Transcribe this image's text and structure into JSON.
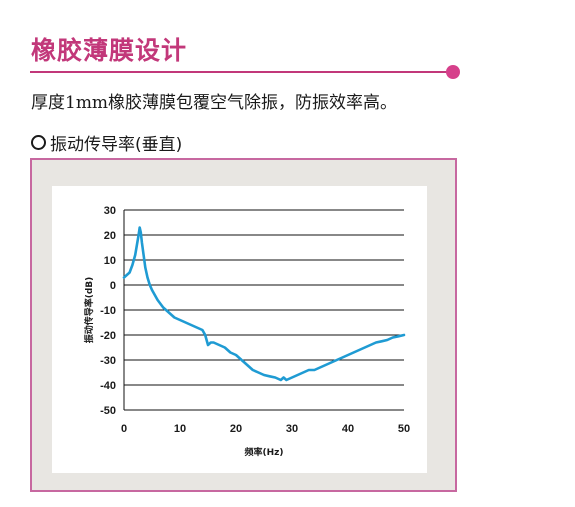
{
  "header": {
    "title": "橡胶薄膜设计",
    "description": "厚度1mm橡胶薄膜包覆空气除振，防振效率高。",
    "subtitle": "振动传导率(垂直)"
  },
  "colors": {
    "accent": "#c2387a",
    "frame": "#c768a0",
    "panel": "#e8e6e2",
    "line": "#1f9bd3"
  },
  "chart_data": {
    "type": "line",
    "title": "",
    "xlabel": "频率(Hz)",
    "ylabel": "振动传导率(dB)",
    "xlim": [
      0,
      50
    ],
    "ylim": [
      -50,
      30
    ],
    "x_ticks": [
      0,
      10,
      20,
      30,
      40,
      50
    ],
    "y_ticks": [
      30,
      20,
      10,
      0,
      -10,
      -20,
      -30,
      -40,
      -50
    ],
    "grid": "horizontal",
    "legend": "none",
    "series": [
      {
        "x": [
          0,
          0.5,
          1,
          1.5,
          2,
          2.3,
          2.6,
          2.8,
          3.0,
          3.2,
          3.5,
          3.8,
          4.2,
          4.6,
          5,
          5.5,
          6,
          7,
          8,
          9,
          10,
          11,
          12,
          13,
          14,
          14.5,
          15,
          15.5,
          16,
          17,
          18,
          19,
          20,
          21,
          22,
          23,
          24,
          25,
          26,
          27,
          28,
          28.5,
          29,
          30,
          31,
          32,
          33,
          34,
          35,
          36,
          37,
          38,
          39,
          40,
          41,
          42,
          43,
          44,
          45,
          46,
          47,
          48,
          49,
          50
        ],
        "y": [
          3,
          4,
          5,
          8,
          12,
          16,
          20,
          23,
          21,
          17,
          12,
          7,
          3,
          0,
          -2,
          -4,
          -6,
          -9,
          -11,
          -13,
          -14,
          -15,
          -16,
          -17,
          -18,
          -20,
          -24,
          -23,
          -23,
          -24,
          -25,
          -27,
          -28,
          -30,
          -32,
          -34,
          -35,
          -36,
          -36.5,
          -37,
          -38,
          -37,
          -38,
          -37,
          -36,
          -35,
          -34,
          -34,
          -33,
          -32,
          -31,
          -30,
          -29,
          -28,
          -27,
          -26,
          -25,
          -24,
          -23,
          -22.5,
          -22,
          -21,
          -20.5,
          -20
        ]
      }
    ]
  }
}
